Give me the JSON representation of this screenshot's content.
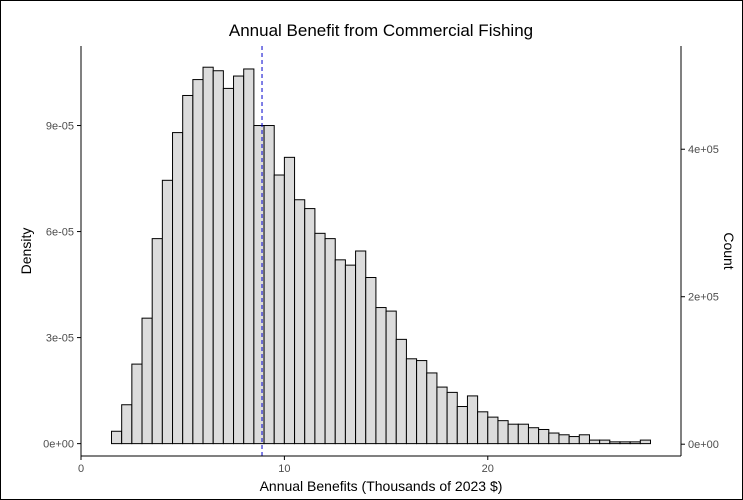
{
  "chart_data": {
    "type": "bar",
    "title": "Annual Benefit from Commercial Fishing",
    "xlabel": "Annual Benefits (Thousands of 2023 $)",
    "ylabel": "Density",
    "y2label": "Count",
    "xlim": [
      0,
      29.5
    ],
    "ylim": [
      -3.5e-06,
      0.0001125
    ],
    "y2lim": [
      -16000,
      540000
    ],
    "x_ticks": [
      0,
      10,
      20
    ],
    "x_tick_labels": [
      "0",
      "10",
      "20"
    ],
    "y_ticks": [
      0,
      3e-05,
      6e-05,
      9e-05
    ],
    "y_tick_labels": [
      "0e+00",
      "3e-05",
      "6e-05",
      "9e-05"
    ],
    "y2_ticks": [
      0,
      200000,
      400000
    ],
    "y2_tick_labels": [
      "0e+00",
      "2e+05",
      "4e+05"
    ],
    "bin_width": 0.5,
    "bin_starts": [
      1.5,
      2.0,
      2.5,
      3.0,
      3.5,
      4.0,
      4.5,
      5.0,
      5.5,
      6.0,
      6.5,
      7.0,
      7.5,
      8.0,
      8.5,
      9.0,
      9.5,
      10.0,
      10.5,
      11.0,
      11.5,
      12.0,
      12.5,
      13.0,
      13.5,
      14.0,
      14.5,
      15.0,
      15.5,
      16.0,
      16.5,
      17.0,
      17.5,
      18.0,
      18.5,
      19.0,
      19.5,
      20.0,
      20.5,
      21.0,
      21.5,
      22.0,
      22.5,
      23.0,
      23.5,
      24.0,
      24.5,
      25.0,
      25.5,
      26.0,
      26.5,
      27.0,
      27.5
    ],
    "values": [
      3.5e-06,
      1.1e-05,
      2.25e-05,
      3.55e-05,
      5.8e-05,
      7.45e-05,
      8.8e-05,
      9.85e-05,
      0.000103,
      0.0001065,
      0.0001055,
      0.0001005,
      0.000104,
      0.000106,
      9e-05,
      9e-05,
      7.6e-05,
      8.1e-05,
      6.9e-05,
      6.65e-05,
      5.95e-05,
      5.8e-05,
      5.2e-05,
      5.05e-05,
      5.45e-05,
      4.7e-05,
      3.85e-05,
      3.75e-05,
      2.95e-05,
      2.4e-05,
      2.35e-05,
      2e-05,
      1.6e-05,
      1.45e-05,
      1.05e-05,
      1.35e-05,
      9e-06,
      7.5e-06,
      6.5e-06,
      5.5e-06,
      5.5e-06,
      4.5e-06,
      4e-06,
      3e-06,
      2.5e-06,
      2e-06,
      2.5e-06,
      1e-06,
      1e-06,
      5e-07,
      5e-07,
      5e-07,
      1e-06
    ],
    "vline": {
      "x": 8.9,
      "color": "#0000cc",
      "style": "dashed"
    },
    "bar_fill": "#dcdcdc",
    "bar_stroke": "#000000",
    "grid": false,
    "legend": "none"
  }
}
